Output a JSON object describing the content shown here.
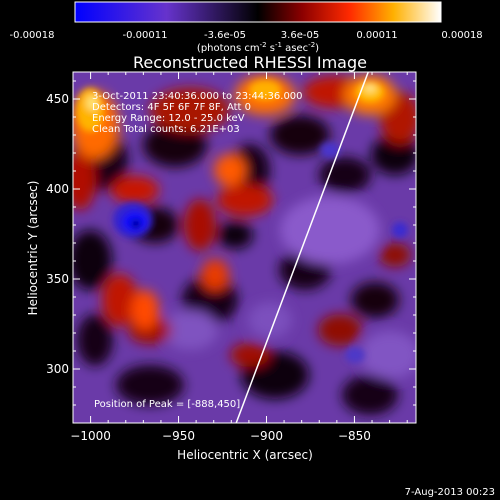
{
  "colorbar": {
    "tick_labels": [
      "-0.00018",
      "-0.00011",
      "-3.6e-05",
      "3.6e-05",
      "0.00011",
      "0.00018"
    ],
    "units_prefix": "(photons cm",
    "units_exp1": "-2",
    "units_mid": " s",
    "units_exp2": "-1",
    "units_mid2": " asec",
    "units_exp3": "-2",
    "units_suffix": ")",
    "range": [
      -0.00018,
      0.00018
    ]
  },
  "plot": {
    "title": "Reconstructed RHESSI Image",
    "x_axis_label": "Heliocentric X (arcsec)",
    "y_axis_label": "Heliocentric Y (arcsec)",
    "x_range": [
      -1010,
      -815
    ],
    "y_range": [
      270,
      465
    ],
    "x_ticks": [
      {
        "value": -1000,
        "label": "−1000"
      },
      {
        "value": -950,
        "label": "−950"
      },
      {
        "value": -900,
        "label": "−900"
      },
      {
        "value": -850,
        "label": "−850"
      }
    ],
    "y_ticks": [
      {
        "value": 300,
        "label": "300"
      },
      {
        "value": 350,
        "label": "350"
      },
      {
        "value": 400,
        "label": "400"
      },
      {
        "value": 450,
        "label": "450"
      }
    ],
    "annotations": [
      " 3-Oct-2011 23:40:36.000 to 23:44:36.000",
      "Detectors: 4F 5F 6F 7F 8F, Att 0",
      "Energy Range: 12.0 - 25.0 keV",
      "Clean     Total counts: 6.21E+03"
    ],
    "peak_text": "Position of Peak = [-888,450]",
    "limb_line": {
      "start": {
        "x": -918,
        "y": 268
      },
      "end": {
        "x": -841,
        "y": 468
      }
    }
  },
  "footer": {
    "timestamp": "7-Aug-2013 00:23"
  }
}
